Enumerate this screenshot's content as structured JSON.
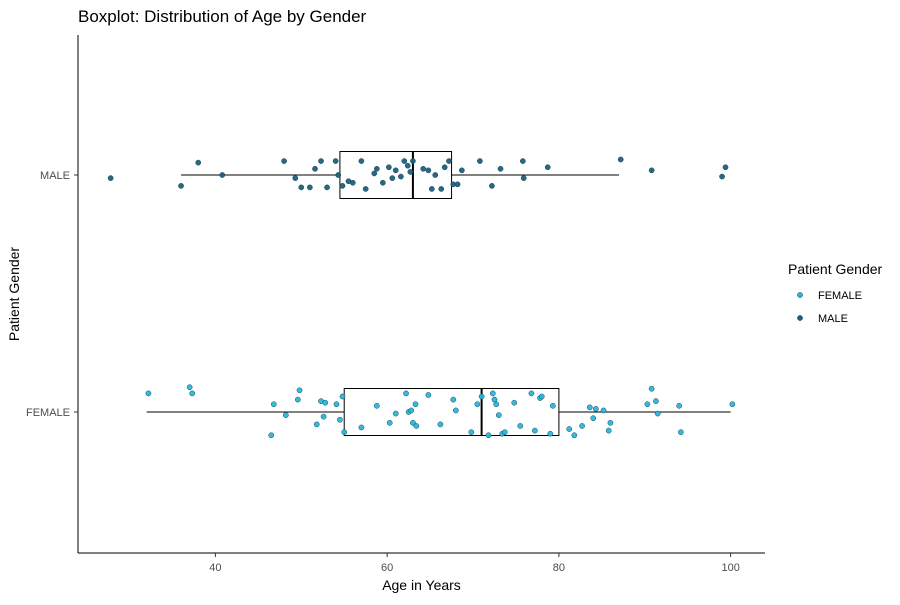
{
  "chart_data": {
    "type": "boxplot",
    "title": "Boxplot: Distribution of Age by Gender",
    "xlabel": "Age in Years",
    "ylabel": "Patient Gender",
    "xlim": [
      24,
      104
    ],
    "x_ticks": [
      40,
      60,
      80,
      100
    ],
    "categories": [
      "FEMALE",
      "MALE"
    ],
    "grid": false,
    "legend": {
      "title": "Patient Gender",
      "position": "right",
      "entries": [
        {
          "label": "FEMALE",
          "color": "#29b6d9"
        },
        {
          "label": "MALE",
          "color": "#1f5f7a"
        }
      ]
    },
    "series": [
      {
        "category": "FEMALE",
        "color": "#29b6d9",
        "box": {
          "min": 32,
          "q1": 55,
          "median": 71,
          "q3": 80,
          "max": 100
        },
        "points": [
          {
            "x": 32.2,
            "j": 0.12
          },
          {
            "x": 37.0,
            "j": 0.16
          },
          {
            "x": 37.3,
            "j": 0.12
          },
          {
            "x": 46.5,
            "j": -0.15
          },
          {
            "x": 46.8,
            "j": 0.05
          },
          {
            "x": 48.2,
            "j": -0.02
          },
          {
            "x": 49.6,
            "j": 0.08
          },
          {
            "x": 49.8,
            "j": 0.14
          },
          {
            "x": 51.8,
            "j": -0.08
          },
          {
            "x": 52.3,
            "j": 0.07
          },
          {
            "x": 52.6,
            "j": -0.03
          },
          {
            "x": 52.8,
            "j": 0.06
          },
          {
            "x": 54.1,
            "j": 0.05
          },
          {
            "x": 54.5,
            "j": -0.05
          },
          {
            "x": 54.8,
            "j": 0.1
          },
          {
            "x": 55.0,
            "j": -0.13
          },
          {
            "x": 57.0,
            "j": -0.1
          },
          {
            "x": 58.8,
            "j": 0.04
          },
          {
            "x": 60.3,
            "j": -0.07
          },
          {
            "x": 61.0,
            "j": -0.01
          },
          {
            "x": 62.2,
            "j": 0.12
          },
          {
            "x": 62.5,
            "j": 0.0
          },
          {
            "x": 62.8,
            "j": 0.01
          },
          {
            "x": 63.0,
            "j": -0.07
          },
          {
            "x": 63.3,
            "j": 0.05
          },
          {
            "x": 63.4,
            "j": -0.09
          },
          {
            "x": 64.8,
            "j": 0.11
          },
          {
            "x": 66.2,
            "j": -0.08
          },
          {
            "x": 67.7,
            "j": 0.08
          },
          {
            "x": 68.0,
            "j": 0.01
          },
          {
            "x": 69.8,
            "j": -0.13
          },
          {
            "x": 70.5,
            "j": 0.05
          },
          {
            "x": 71.0,
            "j": 0.1
          },
          {
            "x": 71.8,
            "j": -0.15
          },
          {
            "x": 72.3,
            "j": 0.12
          },
          {
            "x": 72.5,
            "j": 0.08
          },
          {
            "x": 72.7,
            "j": 0.05
          },
          {
            "x": 73.0,
            "j": -0.02
          },
          {
            "x": 73.4,
            "j": -0.14
          },
          {
            "x": 73.7,
            "j": -0.13
          },
          {
            "x": 74.8,
            "j": 0.06
          },
          {
            "x": 75.5,
            "j": -0.09
          },
          {
            "x": 76.8,
            "j": 0.12
          },
          {
            "x": 77.2,
            "j": -0.12
          },
          {
            "x": 77.8,
            "j": 0.09
          },
          {
            "x": 78.0,
            "j": 0.1
          },
          {
            "x": 79.0,
            "j": -0.14
          },
          {
            "x": 79.3,
            "j": 0.04
          },
          {
            "x": 81.2,
            "j": -0.11
          },
          {
            "x": 81.8,
            "j": -0.15
          },
          {
            "x": 82.7,
            "j": -0.09
          },
          {
            "x": 83.6,
            "j": 0.03
          },
          {
            "x": 84.0,
            "j": -0.04
          },
          {
            "x": 84.3,
            "j": 0.02
          },
          {
            "x": 85.2,
            "j": 0.01
          },
          {
            "x": 85.8,
            "j": -0.12
          },
          {
            "x": 86.0,
            "j": -0.07
          },
          {
            "x": 90.3,
            "j": 0.05
          },
          {
            "x": 90.8,
            "j": 0.15
          },
          {
            "x": 91.3,
            "j": 0.07
          },
          {
            "x": 91.5,
            "j": -0.01
          },
          {
            "x": 94.0,
            "j": 0.04
          },
          {
            "x": 94.2,
            "j": -0.13
          },
          {
            "x": 100.2,
            "j": 0.05
          }
        ]
      },
      {
        "category": "MALE",
        "color": "#1f5f7a",
        "box": {
          "min": 36,
          "q1": 54.5,
          "median": 63,
          "q3": 67.5,
          "max": 87
        },
        "points": [
          {
            "x": 27.8,
            "j": -0.02
          },
          {
            "x": 36.0,
            "j": -0.07
          },
          {
            "x": 38.0,
            "j": 0.08
          },
          {
            "x": 40.8,
            "j": 0.0
          },
          {
            "x": 48.0,
            "j": 0.09
          },
          {
            "x": 49.3,
            "j": -0.02
          },
          {
            "x": 50.0,
            "j": -0.08
          },
          {
            "x": 51.0,
            "j": -0.08
          },
          {
            "x": 51.6,
            "j": 0.04
          },
          {
            "x": 52.3,
            "j": 0.09
          },
          {
            "x": 53.0,
            "j": -0.08
          },
          {
            "x": 54.0,
            "j": 0.09
          },
          {
            "x": 54.3,
            "j": 0.0
          },
          {
            "x": 54.8,
            "j": -0.07
          },
          {
            "x": 55.5,
            "j": -0.04
          },
          {
            "x": 56.0,
            "j": -0.05
          },
          {
            "x": 57.0,
            "j": 0.09
          },
          {
            "x": 57.5,
            "j": -0.09
          },
          {
            "x": 58.5,
            "j": 0.01
          },
          {
            "x": 58.8,
            "j": 0.04
          },
          {
            "x": 59.5,
            "j": -0.05
          },
          {
            "x": 60.2,
            "j": 0.05
          },
          {
            "x": 60.6,
            "j": -0.02
          },
          {
            "x": 61.0,
            "j": 0.03
          },
          {
            "x": 61.6,
            "j": -0.01
          },
          {
            "x": 62.0,
            "j": 0.09
          },
          {
            "x": 62.4,
            "j": 0.06
          },
          {
            "x": 62.7,
            "j": 0.02
          },
          {
            "x": 63.0,
            "j": 0.09
          },
          {
            "x": 64.2,
            "j": 0.04
          },
          {
            "x": 64.8,
            "j": 0.03
          },
          {
            "x": 65.2,
            "j": -0.09
          },
          {
            "x": 65.6,
            "j": 0.0
          },
          {
            "x": 66.3,
            "j": -0.09
          },
          {
            "x": 66.7,
            "j": 0.05
          },
          {
            "x": 67.2,
            "j": 0.09
          },
          {
            "x": 67.7,
            "j": -0.06
          },
          {
            "x": 68.2,
            "j": -0.06
          },
          {
            "x": 68.7,
            "j": 0.03
          },
          {
            "x": 70.8,
            "j": 0.09
          },
          {
            "x": 72.2,
            "j": -0.07
          },
          {
            "x": 73.2,
            "j": 0.04
          },
          {
            "x": 75.8,
            "j": 0.09
          },
          {
            "x": 75.9,
            "j": -0.02
          },
          {
            "x": 78.7,
            "j": 0.05
          },
          {
            "x": 87.2,
            "j": 0.1
          },
          {
            "x": 90.8,
            "j": 0.03
          },
          {
            "x": 99.0,
            "j": -0.01
          },
          {
            "x": 99.4,
            "j": 0.05
          }
        ]
      }
    ]
  }
}
